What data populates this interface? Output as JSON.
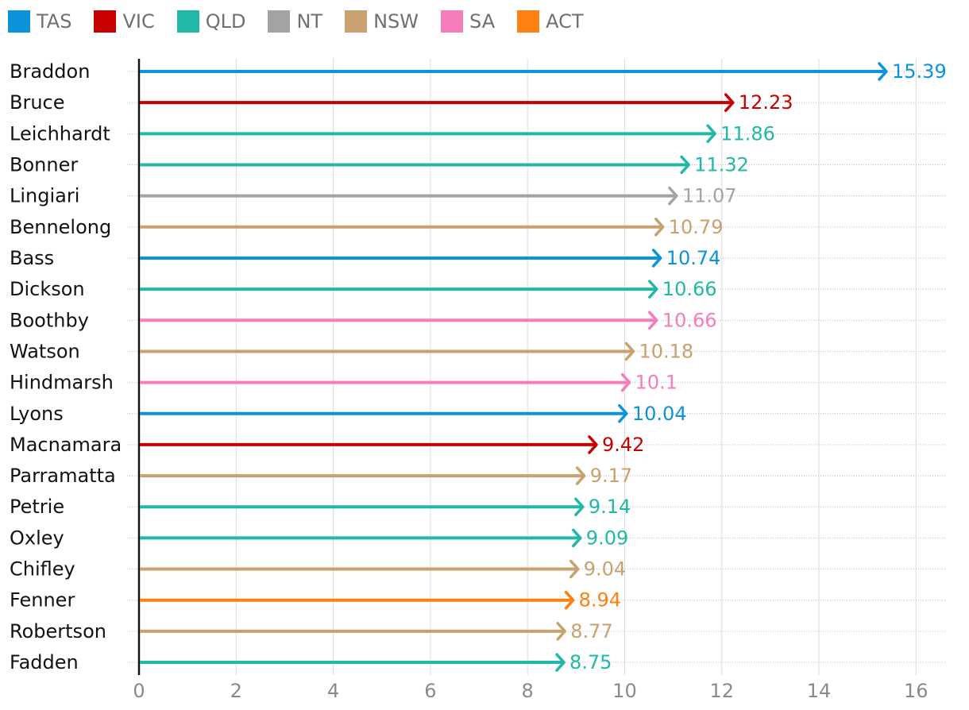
{
  "legend": [
    {
      "label": "TAS",
      "color": "#0b93dc"
    },
    {
      "label": "VIC",
      "color": "#c70000"
    },
    {
      "label": "QLD",
      "color": "#22b8a8"
    },
    {
      "label": "NT",
      "color": "#a3a3a3"
    },
    {
      "label": "NSW",
      "color": "#c8a16f"
    },
    {
      "label": "SA",
      "color": "#f57dbb"
    },
    {
      "label": "ACT",
      "color": "#ff8011"
    }
  ],
  "chart_data": {
    "type": "bar",
    "orientation": "horizontal",
    "mark": "arrow",
    "title": "",
    "xlabel": "",
    "ylabel": "",
    "xlim": [
      0,
      16.6
    ],
    "xticks": [
      0,
      2,
      4,
      6,
      8,
      10,
      12,
      14,
      16
    ],
    "grid": true,
    "legend_position": "top-left",
    "categories": [
      "Braddon",
      "Bruce",
      "Leichhardt",
      "Bonner",
      "Lingiari",
      "Bennelong",
      "Bass",
      "Dickson",
      "Boothby",
      "Watson",
      "Hindmarsh",
      "Lyons",
      "Macnamara",
      "Parramatta",
      "Petrie",
      "Oxley",
      "Chifley",
      "Fenner",
      "Robertson",
      "Fadden"
    ],
    "values": [
      15.39,
      12.23,
      11.86,
      11.32,
      11.07,
      10.79,
      10.74,
      10.66,
      10.66,
      10.18,
      10.1,
      10.04,
      9.42,
      9.17,
      9.14,
      9.09,
      9.04,
      8.94,
      8.77,
      8.75
    ],
    "value_labels": [
      "15.39",
      "12.23",
      "11.86",
      "11.32",
      "11.07",
      "10.79",
      "10.74",
      "10.66",
      "10.66",
      "10.18",
      "10.1",
      "10.04",
      "9.42",
      "9.17",
      "9.14",
      "9.09",
      "9.04",
      "8.94",
      "8.77",
      "8.75"
    ],
    "states": [
      "TAS",
      "VIC",
      "QLD",
      "QLD",
      "NT",
      "NSW",
      "TAS",
      "QLD",
      "SA",
      "NSW",
      "SA",
      "TAS",
      "VIC",
      "NSW",
      "QLD",
      "QLD",
      "NSW",
      "ACT",
      "NSW",
      "QLD"
    ]
  }
}
